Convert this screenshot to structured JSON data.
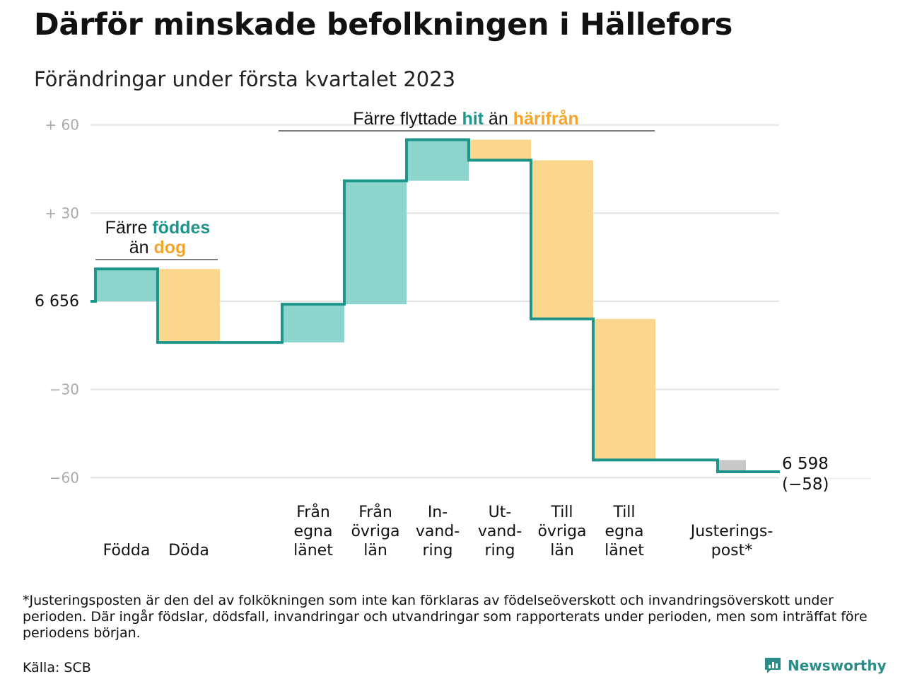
{
  "chart_data": {
    "type": "waterfall",
    "title": "Därför minskade befolkningen i Hällefors",
    "subtitle": "Förändringar under första kvartalet 2023",
    "start_value": 6656,
    "start_label": "6 656",
    "end_value": 6598,
    "end_label": "6 598",
    "end_change_label": "(−58)",
    "ylim": [
      -62,
      62
    ],
    "yticks": [
      {
        "value": 60,
        "label": "+ 60"
      },
      {
        "value": 30,
        "label": "+ 30"
      },
      {
        "value": 0,
        "label": "6 656"
      },
      {
        "value": -30,
        "label": "−30"
      },
      {
        "value": -60,
        "label": "−60"
      }
    ],
    "bars": [
      {
        "lines": [
          "Födda"
        ],
        "value": 11,
        "kind": "in",
        "slot": 0
      },
      {
        "lines": [
          "Döda"
        ],
        "value": -25,
        "kind": "out",
        "slot": 1
      },
      {
        "lines": [
          "Från",
          "egna",
          "länet"
        ],
        "value": 13,
        "kind": "in",
        "slot": 3
      },
      {
        "lines": [
          "Från",
          "övriga",
          "län"
        ],
        "value": 42,
        "kind": "in",
        "slot": 4
      },
      {
        "lines": [
          "In-",
          "vand-",
          "ring"
        ],
        "value": 14,
        "kind": "in",
        "slot": 5
      },
      {
        "lines": [
          "Ut-",
          "vand-",
          "ring"
        ],
        "value": -7,
        "kind": "out",
        "slot": 6
      },
      {
        "lines": [
          "Till",
          "övriga",
          "län"
        ],
        "value": -54,
        "kind": "out",
        "slot": 7
      },
      {
        "lines": [
          "Till",
          "egna",
          "länet"
        ],
        "value": -48,
        "kind": "out",
        "slot": 8
      },
      {
        "lines": [
          "Justerings-",
          "post*"
        ],
        "value": -4,
        "kind": "adjust",
        "slot": 10
      }
    ],
    "annotations": {
      "births": {
        "line1_pre": "Färre ",
        "line1_hl": "föddes",
        "line2_pre": "än ",
        "line2_hl": "dog"
      },
      "moves": {
        "pre": "Färre flyttade ",
        "hl1": "hit",
        "mid": " än ",
        "hl2": "härifrån"
      }
    },
    "colors": {
      "in": "#8dd5cc",
      "out": "#fad68e",
      "adjust": "#c8c8c8",
      "line": "#1e958a",
      "grid": "#e3e3e3",
      "highlight_in": "#1e958a",
      "highlight_out": "#f5a52b"
    }
  },
  "footnote": "*Justeringsposten är den del av folkökningen som inte kan förklaras av födelseöverskott och invandringsöverskott under perioden. Där ingår födslar, dödsfall, invandringar och utvandringar som rapporterats under perioden, men som inträffat före periodens början.",
  "source": "Källa: SCB",
  "brand": {
    "name": "Newsworthy",
    "icon": "newsworthy-logo-icon"
  }
}
